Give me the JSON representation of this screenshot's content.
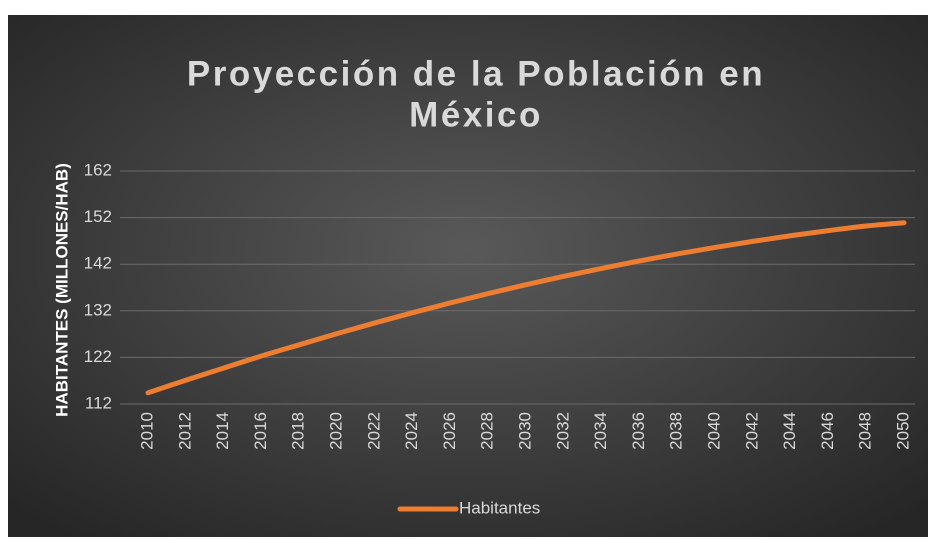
{
  "chart_data": {
    "type": "line",
    "title": "Proyección de la Población en México",
    "y_label": "HABITANTES (MILLONES/HAB)",
    "x": [
      2010,
      2012,
      2014,
      2016,
      2018,
      2020,
      2022,
      2024,
      2026,
      2028,
      2030,
      2032,
      2034,
      2036,
      2038,
      2040,
      2042,
      2044,
      2046,
      2048,
      2050
    ],
    "series": [
      {
        "name": "Habitantes",
        "color": "#ed7d31",
        "values": [
          114.4,
          117.1,
          119.7,
          122.3,
          124.7,
          127.1,
          129.4,
          131.6,
          133.7,
          135.7,
          137.6,
          139.4,
          141.1,
          142.7,
          144.2,
          145.6,
          146.9,
          148.1,
          149.2,
          150.2,
          150.9
        ]
      }
    ],
    "xlim": [
      2010,
      2050
    ],
    "xticks": [
      2010,
      2012,
      2014,
      2016,
      2018,
      2020,
      2022,
      2024,
      2026,
      2028,
      2030,
      2032,
      2034,
      2036,
      2038,
      2040,
      2042,
      2044,
      2046,
      2048,
      2050
    ],
    "ylim": [
      112,
      162
    ],
    "yticks": [
      112,
      122,
      132,
      142,
      152,
      162
    ],
    "grid": true,
    "legend": "bottom"
  }
}
